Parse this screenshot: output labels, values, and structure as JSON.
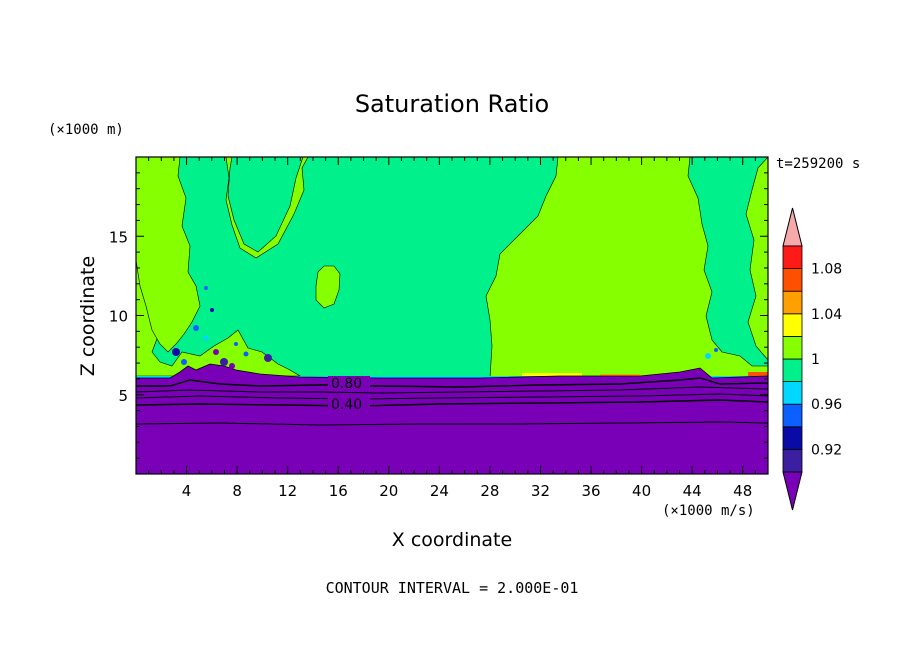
{
  "chart_data": {
    "type": "heatmap",
    "title": "Saturation Ratio",
    "xlabel": "X coordinate",
    "ylabel": "Z coordinate",
    "x_unit": "(×1000 m/s)",
    "y_unit": "(×1000 m)",
    "time_label": "t=259200 s",
    "footer": "CONTOUR INTERVAL = 2.000E-01",
    "xlim": [
      0,
      50
    ],
    "ylim": [
      0,
      20
    ],
    "x_ticks": [
      4,
      8,
      12,
      16,
      20,
      24,
      28,
      32,
      36,
      40,
      44,
      48
    ],
    "y_ticks": [
      5,
      10,
      15
    ],
    "contour_labels": [
      {
        "text": "0.80",
        "x": 16.3,
        "z": 5.7
      },
      {
        "text": "0.40",
        "x": 16.3,
        "z": 4.5
      }
    ],
    "contour_lines_z": [
      6.0,
      5.5,
      5.0,
      4.6,
      3.2
    ],
    "colorbar": {
      "levels": [
        {
          "label": "",
          "color": "#7a00b8"
        },
        {
          "label": "0.92",
          "color": "#3c1fa0"
        },
        {
          "label": "",
          "color": "#0a0aa6"
        },
        {
          "label": "0.96",
          "color": "#0b60ff"
        },
        {
          "label": "",
          "color": "#00d8ff"
        },
        {
          "label": "1",
          "color": "#00f08c"
        },
        {
          "label": "",
          "color": "#86ff00"
        },
        {
          "label": "1.04",
          "color": "#ffff00"
        },
        {
          "label": "",
          "color": "#ffa000"
        },
        {
          "label": "1.08",
          "color": "#ff5000"
        },
        {
          "label": "",
          "color": "#ff1a1a"
        },
        {
          "label": "",
          "color": "#f5a9a9"
        }
      ]
    },
    "regions": {
      "below_cloud_color": "#7a00b8",
      "supersaturated_color": "#86ff00",
      "near_saturation_color": "#00f08c",
      "cloud_base_z": 6.0
    }
  }
}
